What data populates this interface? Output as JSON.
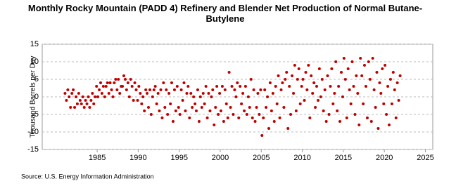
{
  "chart_data": {
    "type": "scatter",
    "title": "Monthly Rocky Mountain (PADD 4) Refinery and Blender Net Production of Normal Butane-Butylene",
    "y_label": "Thousand Barrels per Day",
    "source": "Source: U.S. Energy Information Administration",
    "xlim": [
      1978.3,
      2025.9
    ],
    "xticks": [
      1985,
      1990,
      1995,
      2000,
      2005,
      2010,
      2015,
      2020,
      2025
    ],
    "ylim": [
      -15,
      15
    ],
    "yticks": [
      -15,
      -10,
      -5,
      0,
      5,
      10,
      15
    ],
    "grid": true,
    "series": [
      {
        "name": "Normal Butane-Butylene",
        "color": "#c00000",
        "x": [
          1981.08,
          1981.25,
          1981.42,
          1981.58,
          1981.75,
          1981.92,
          1982.08,
          1982.25,
          1982.42,
          1982.58,
          1982.75,
          1982.92,
          1983.08,
          1983.25,
          1983.42,
          1983.58,
          1983.75,
          1983.92,
          1984.08,
          1984.25,
          1984.42,
          1984.58,
          1984.75,
          1984.92,
          1985.08,
          1985.25,
          1985.42,
          1985.58,
          1985.75,
          1985.92,
          1986.08,
          1986.25,
          1986.42,
          1986.58,
          1986.75,
          1986.92,
          1987.08,
          1987.25,
          1987.42,
          1987.58,
          1987.75,
          1987.92,
          1988.08,
          1988.25,
          1988.42,
          1988.58,
          1988.75,
          1988.92,
          1989.08,
          1989.25,
          1989.42,
          1989.58,
          1989.75,
          1989.92,
          1990.08,
          1990.25,
          1990.42,
          1990.58,
          1990.75,
          1990.92,
          1991.08,
          1991.25,
          1991.42,
          1991.58,
          1991.75,
          1991.92,
          1992.08,
          1992.25,
          1992.42,
          1992.58,
          1992.75,
          1992.92,
          1993.08,
          1993.25,
          1993.42,
          1993.58,
          1993.75,
          1993.92,
          1994.08,
          1994.25,
          1994.42,
          1994.58,
          1994.75,
          1994.92,
          1995.08,
          1995.25,
          1995.42,
          1995.58,
          1995.75,
          1995.92,
          1996.08,
          1996.25,
          1996.42,
          1996.58,
          1996.75,
          1996.92,
          1997.08,
          1997.25,
          1997.42,
          1997.58,
          1997.75,
          1997.92,
          1998.08,
          1998.25,
          1998.42,
          1998.58,
          1998.75,
          1998.92,
          1999.08,
          1999.25,
          1999.42,
          1999.58,
          1999.75,
          1999.92,
          2000.08,
          2000.25,
          2000.42,
          2000.58,
          2000.75,
          2000.92,
          2001.08,
          2001.25,
          2001.42,
          2001.58,
          2001.75,
          2001.92,
          2002.08,
          2002.25,
          2002.42,
          2002.58,
          2002.75,
          2002.92,
          2003.08,
          2003.25,
          2003.42,
          2003.58,
          2003.75,
          2003.92,
          2004.08,
          2004.25,
          2004.42,
          2004.58,
          2004.75,
          2004.92,
          2005.08,
          2005.25,
          2005.42,
          2005.58,
          2005.75,
          2005.92,
          2006.08,
          2006.25,
          2006.42,
          2006.58,
          2006.75,
          2006.92,
          2007.08,
          2007.25,
          2007.42,
          2007.58,
          2007.75,
          2007.92,
          2008.08,
          2008.25,
          2008.42,
          2008.58,
          2008.75,
          2008.92,
          2009.08,
          2009.25,
          2009.42,
          2009.58,
          2009.75,
          2009.92,
          2010.08,
          2010.25,
          2010.42,
          2010.58,
          2010.75,
          2010.92,
          2011.08,
          2011.25,
          2011.42,
          2011.58,
          2011.75,
          2011.92,
          2012.08,
          2012.25,
          2012.42,
          2012.58,
          2012.75,
          2012.92,
          2013.08,
          2013.25,
          2013.42,
          2013.58,
          2013.75,
          2013.92,
          2014.08,
          2014.25,
          2014.42,
          2014.58,
          2014.75,
          2014.92,
          2015.08,
          2015.25,
          2015.42,
          2015.58,
          2015.75,
          2015.92,
          2016.08,
          2016.25,
          2016.42,
          2016.58,
          2016.75,
          2016.92,
          2017.08,
          2017.25,
          2017.42,
          2017.58,
          2017.75,
          2017.92,
          2018.08,
          2018.25,
          2018.42,
          2018.58,
          2018.75,
          2018.92,
          2019.08,
          2019.25,
          2019.42,
          2019.58,
          2019.75,
          2019.92,
          2020.08,
          2020.25,
          2020.42,
          2020.58,
          2020.75,
          2020.92,
          2021.08,
          2021.25,
          2021.42,
          2021.58,
          2021.75,
          2021.92
        ],
        "values": [
          1,
          -1,
          2,
          0,
          -3,
          1,
          2,
          -3,
          0,
          -2,
          1,
          -1,
          -2,
          0,
          -3,
          -1,
          -2,
          0,
          -3,
          -1,
          1,
          -2,
          0,
          3,
          0,
          2,
          4,
          1,
          3,
          0,
          3,
          4,
          1,
          4,
          2,
          0,
          4,
          5,
          2,
          5,
          1,
          3,
          3,
          6,
          5,
          2,
          4,
          0,
          5,
          3,
          -1,
          4,
          2,
          -1,
          3,
          1,
          -2,
          0,
          -4,
          2,
          1,
          -3,
          2,
          -5,
          0,
          2,
          3,
          -2,
          1,
          -4,
          2,
          -6,
          4,
          -3,
          2,
          -5,
          1,
          -2,
          4,
          -7,
          2,
          -4,
          3,
          -3,
          -5,
          2,
          -1,
          4,
          -4,
          1,
          3,
          -6,
          1,
          -3,
          0,
          -2,
          -4,
          2,
          -7,
          0,
          -3,
          1,
          -2,
          3,
          -6,
          1,
          -4,
          0,
          2,
          -8,
          -3,
          3,
          -5,
          1,
          -4,
          3,
          -7,
          2,
          -2,
          -6,
          7,
          -3,
          3,
          -5,
          2,
          0,
          4,
          -6,
          3,
          -2,
          1,
          -4,
          3,
          -5,
          0,
          -3,
          5,
          -6,
          2,
          -7,
          -3,
          1,
          -5,
          2,
          -11,
          -6,
          2,
          -3,
          0,
          -9,
          4,
          -4,
          1,
          -7,
          3,
          -2,
          6,
          -6,
          2,
          4,
          -3,
          5,
          7,
          -9,
          3,
          -5,
          6,
          1,
          9,
          -4,
          5,
          8,
          -2,
          3,
          5,
          -1,
          7,
          2,
          9,
          -6,
          6,
          1,
          4,
          -3,
          3,
          -1,
          8,
          0,
          5,
          -4,
          2,
          -7,
          6,
          -5,
          3,
          8,
          -2,
          1,
          10,
          -4,
          3,
          -7,
          7,
          0,
          11,
          5,
          -6,
          8,
          2,
          -2,
          10,
          3,
          -5,
          6,
          1,
          -8,
          11,
          6,
          -2,
          9,
          3,
          -6,
          10,
          5,
          -7,
          11,
          2,
          -3,
          7,
          -9,
          4,
          1,
          8,
          -2,
          9,
          -5,
          3,
          -8,
          5,
          -2,
          7,
          2,
          -6,
          4,
          -1,
          6
        ]
      }
    ]
  }
}
